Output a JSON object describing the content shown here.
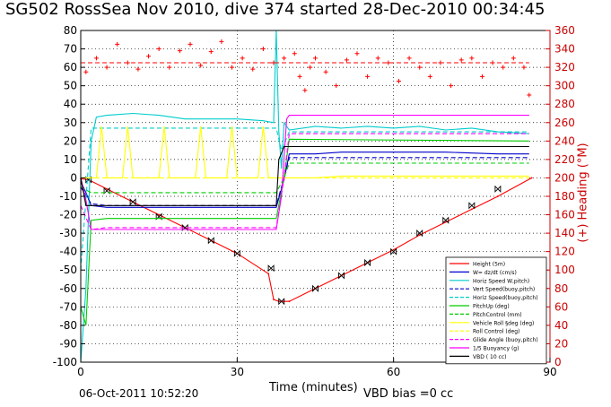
{
  "title": "SG502 RossSea Nov 2010, dive 374 started 28-Dec-2010 00:34:45",
  "footer": {
    "date": "06-Oct-2011 10:52:20",
    "vbd_bias": "VBD bias =0 cc"
  },
  "colors": {
    "axis_right": "#cc0000",
    "grid": "#000000"
  },
  "chart_data": {
    "type": "line",
    "title": "SG502 RossSea Nov 2010, dive 374 started 28-Dec-2010 00:34:45",
    "xlabel": "Time (minutes)",
    "ylabel": "",
    "y2label": "(+) Heading (°M)",
    "xlim": [
      0,
      90
    ],
    "ylim": [
      -100,
      80
    ],
    "y2lim": [
      0,
      360
    ],
    "xticks": [
      0,
      30,
      60,
      90
    ],
    "yticks": [
      -100,
      -90,
      -80,
      -70,
      -60,
      -50,
      -40,
      -30,
      -20,
      -10,
      0,
      10,
      20,
      30,
      40,
      50,
      60,
      70,
      80
    ],
    "y2ticks": [
      0,
      20,
      40,
      60,
      80,
      100,
      120,
      140,
      160,
      180,
      200,
      220,
      240,
      260,
      280,
      300,
      320,
      340,
      360
    ],
    "grid": true,
    "legend_position": "bottom-right",
    "legend": [
      {
        "name": "Height (5m)",
        "color": "#ff0000",
        "dash": "solid"
      },
      {
        "name": "W= dz/dt (cm/s)",
        "color": "#0000cc",
        "dash": "solid"
      },
      {
        "name": "Horiz Speed W,pitch)",
        "color": "#00cccc",
        "dash": "solid"
      },
      {
        "name": "Vert Speed(buoy,pitch)",
        "color": "#0000cc",
        "dash": "dash"
      },
      {
        "name": "Horiz Speed(buoy,pitch)",
        "color": "#00cccc",
        "dash": "dash"
      },
      {
        "name": "PitchUp (deg)",
        "color": "#00cc00",
        "dash": "solid"
      },
      {
        "name": "PitchControl (mm)",
        "color": "#00cc00",
        "dash": "dash"
      },
      {
        "name": "Vehicle Roll §deg (deg)",
        "color": "#ffff00",
        "dash": "solid"
      },
      {
        "name": "Roll Control (deg)",
        "color": "#ffff00",
        "dash": "dash"
      },
      {
        "name": "Glide Angle (buoy,pitch)",
        "color": "#ff00ff",
        "dash": "dash"
      },
      {
        "name": "1/5 Buoyancy (g)",
        "color": "#ff00ff",
        "dash": "solid"
      },
      {
        "name": "VBD ( 10 cc)",
        "color": "#000000",
        "dash": "solid"
      }
    ],
    "series": [
      {
        "name": "Height (5m)",
        "axis": "left",
        "color": "#ff0000",
        "dash": "solid",
        "markers": true,
        "x": [
          0,
          1.5,
          5,
          10,
          15,
          20,
          25,
          30,
          36,
          37,
          38,
          39,
          40,
          45,
          50,
          55,
          60,
          65,
          70,
          75,
          80,
          86.5
        ],
        "y": [
          -0.5,
          -1,
          -6,
          -13,
          -20,
          -27,
          -34,
          -41,
          -52,
          -66,
          -67,
          -67,
          -67,
          -60,
          -53,
          -46,
          -39,
          -31,
          -24,
          -17,
          -10,
          0
        ]
      },
      {
        "name": "Height markers",
        "axis": "left",
        "color": "#000000",
        "dash": "none",
        "markers": true,
        "marker_style": "bowtie",
        "x": [
          1.5,
          5,
          10,
          15,
          20,
          25,
          30,
          36.5,
          38.5,
          45,
          50,
          55,
          60,
          65,
          70,
          75,
          80
        ],
        "y": [
          -1,
          -7,
          -13,
          -21,
          -27,
          -34,
          -41,
          -49,
          -67,
          -60,
          -53,
          -46,
          -40,
          -30,
          -23,
          -15,
          -6
        ]
      },
      {
        "name": "W= dz/dt (cm/s)",
        "axis": "left",
        "color": "#0000cc",
        "dash": "solid",
        "markers": false,
        "x": [
          0,
          1,
          2,
          5,
          10,
          20,
          30,
          37.5,
          39,
          40,
          45,
          50,
          60,
          70,
          80,
          86
        ],
        "y": [
          -2,
          -8,
          -15,
          -16,
          -16,
          -16,
          -16,
          -16,
          -1,
          13,
          13,
          14,
          14,
          14,
          13,
          13
        ]
      },
      {
        "name": "Horiz Speed W,pitch)",
        "axis": "left",
        "color": "#00cccc",
        "dash": "solid",
        "markers": false,
        "x": [
          0,
          1,
          2,
          3,
          5,
          10,
          15,
          20,
          25,
          30,
          35,
          37,
          37.5,
          38,
          38.5,
          39,
          40,
          45,
          50,
          55,
          60,
          65,
          70,
          75,
          80,
          86
        ],
        "y": [
          -100,
          -60,
          20,
          33,
          34,
          35,
          34,
          32,
          32,
          32,
          31,
          30,
          80,
          25,
          5,
          30,
          26,
          28,
          27,
          28,
          27,
          28,
          26,
          27,
          25,
          24
        ]
      },
      {
        "name": "Vert Speed(buoy,pitch)",
        "axis": "left",
        "color": "#0000cc",
        "dash": "dash",
        "markers": false,
        "x": [
          0,
          2,
          5,
          20,
          37.5,
          39,
          40,
          86
        ],
        "y": [
          -5,
          -14,
          -15,
          -15,
          -15,
          0,
          11,
          11
        ]
      },
      {
        "name": "Horiz Speed(buoy,pitch)",
        "axis": "left",
        "color": "#00cccc",
        "dash": "dash",
        "markers": false,
        "x": [
          0,
          2,
          5,
          20,
          37.5,
          38.5,
          40,
          86
        ],
        "y": [
          -50,
          27,
          27,
          27,
          27,
          15,
          25,
          25
        ]
      },
      {
        "name": "PitchUp (deg)",
        "axis": "left",
        "color": "#00cc00",
        "dash": "solid",
        "markers": false,
        "x": [
          0,
          1,
          2,
          5,
          20,
          37.5,
          39,
          40,
          86
        ],
        "y": [
          -70,
          -80,
          -23,
          -22,
          -22,
          -22,
          0,
          21,
          20
        ]
      },
      {
        "name": "PitchControl (mm)",
        "axis": "left",
        "color": "#00cc00",
        "dash": "dash",
        "markers": false,
        "x": [
          0,
          2,
          5,
          20,
          37.5,
          39,
          40,
          86
        ],
        "y": [
          -5,
          -8,
          -8,
          -8,
          -8,
          0,
          8,
          8
        ]
      },
      {
        "name": "Vehicle Roll §deg (deg)",
        "axis": "left",
        "color": "#ffff00",
        "dash": "solid",
        "markers": false,
        "x": [
          0,
          3,
          4,
          5,
          8,
          9,
          10,
          15,
          16,
          17,
          22,
          23,
          24,
          28,
          29,
          30,
          34,
          35,
          36,
          40,
          45,
          50,
          60,
          70,
          80,
          86
        ],
        "y": [
          0,
          0,
          28,
          0,
          0,
          28,
          0,
          0,
          28,
          0,
          0,
          28,
          0,
          0,
          28,
          0,
          0,
          28,
          0,
          0,
          0,
          1,
          1,
          1,
          1,
          1
        ]
      },
      {
        "name": "Roll Control (deg)",
        "axis": "left",
        "color": "#ffff00",
        "dash": "dash",
        "markers": false,
        "x": [
          0,
          86
        ],
        "y": [
          0,
          0
        ]
      },
      {
        "name": "Glide Angle (buoy,pitch)",
        "axis": "left",
        "color": "#ff00ff",
        "dash": "dash",
        "markers": false,
        "x": [
          0,
          2,
          5,
          20,
          37.5,
          39,
          40,
          86
        ],
        "y": [
          -15,
          -28,
          -27,
          -27,
          -27,
          0,
          24,
          24
        ]
      },
      {
        "name": "1/5 Buoyancy (g)",
        "axis": "left",
        "color": "#ff00ff",
        "dash": "solid",
        "markers": false,
        "x": [
          0,
          1,
          2,
          5,
          20,
          37.5,
          38.5,
          39.5,
          40,
          86
        ],
        "y": [
          0,
          -12,
          -28,
          -28,
          -28,
          -28,
          -10,
          32,
          34,
          34
        ]
      },
      {
        "name": "VBD ( 10 cc)",
        "axis": "left",
        "color": "#000000",
        "dash": "solid",
        "markers": false,
        "x": [
          0,
          1,
          2,
          5,
          37.5,
          38,
          39,
          86
        ],
        "y": [
          0,
          -15,
          -15,
          -15,
          -15,
          10,
          17,
          17
        ]
      },
      {
        "name": "Heading",
        "axis": "right",
        "color": "#ff0000",
        "dash": "none",
        "markers": true,
        "marker_style": "plus",
        "x": [
          1,
          3,
          5,
          7,
          9,
          11,
          13,
          15,
          17,
          19,
          21,
          23,
          25,
          27,
          29,
          31,
          33,
          35,
          37,
          39,
          41,
          42,
          43,
          44,
          45,
          47,
          49,
          51,
          53,
          55,
          57,
          59,
          61,
          63,
          65,
          67,
          69,
          71,
          73,
          75,
          77,
          79,
          81,
          83,
          85,
          86
        ],
        "y": [
          315,
          330,
          320,
          345,
          325,
          318,
          332,
          340,
          320,
          338,
          345,
          322,
          337,
          348,
          320,
          330,
          318,
          340,
          325,
          330,
          335,
          310,
          295,
          320,
          330,
          315,
          300,
          328,
          335,
          310,
          330,
          325,
          305,
          330,
          320,
          310,
          325,
          300,
          328,
          330,
          310,
          325,
          320,
          330,
          320,
          290
        ]
      },
      {
        "name": "Heading target",
        "axis": "right",
        "color": "#ff0000",
        "dash": "dash",
        "markers": false,
        "x": [
          0,
          86
        ],
        "y": [
          325,
          325
        ]
      }
    ]
  }
}
